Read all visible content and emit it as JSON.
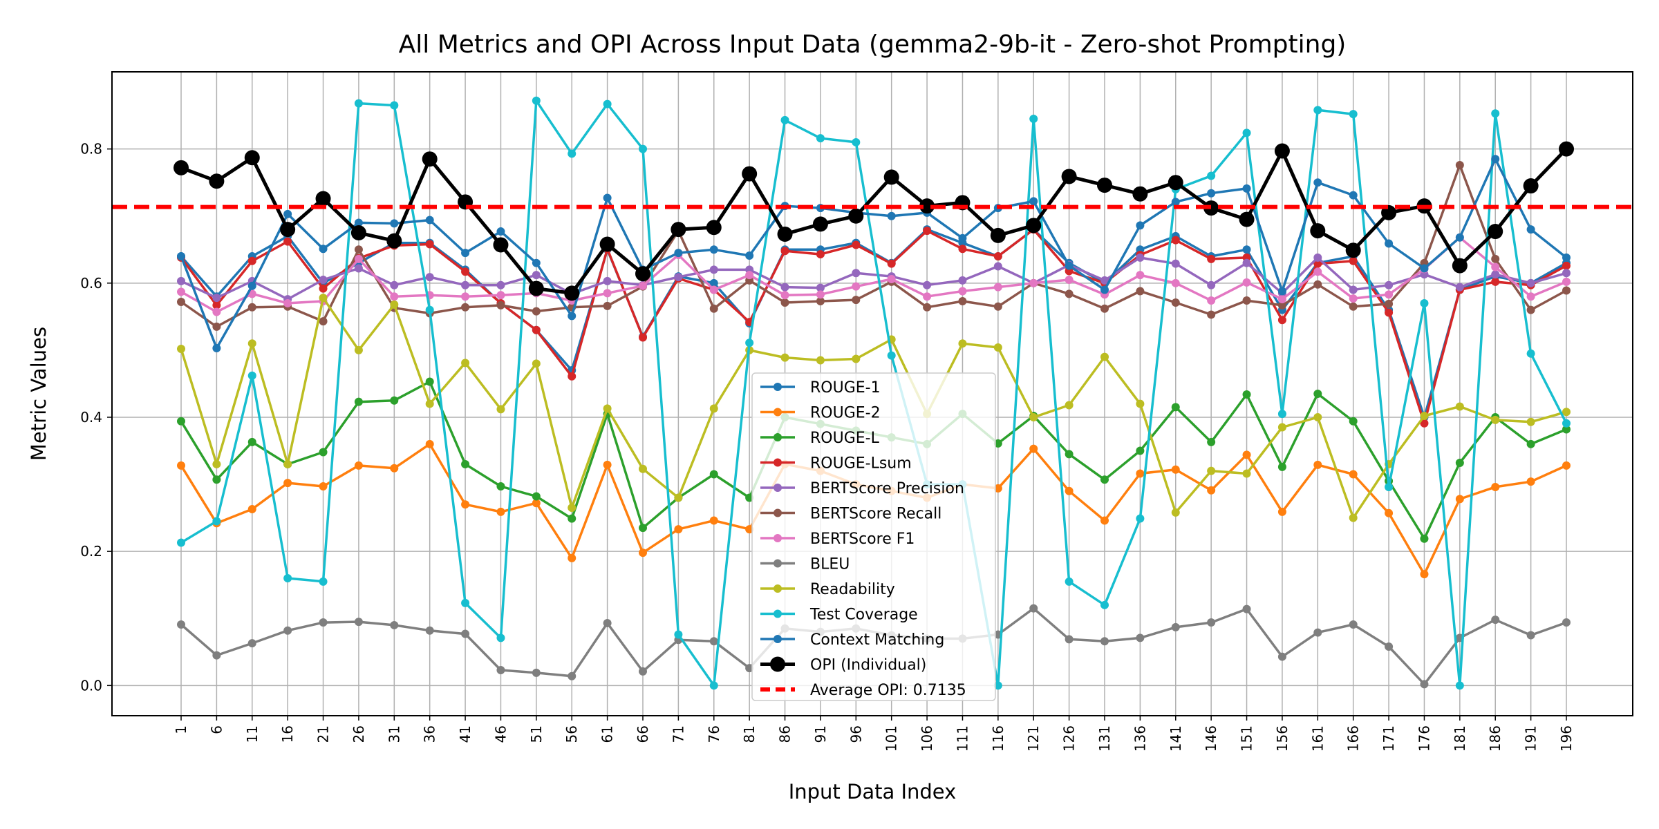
{
  "chart_data": {
    "type": "line",
    "title": "All Metrics and OPI Across Input Data (gemma2-9b-it - Zero-shot Prompting)",
    "xlabel": "Input Data Index",
    "ylabel": "Metric Values",
    "ylim": [
      -0.045,
      0.915
    ],
    "yticks": [
      0.0,
      0.2,
      0.4,
      0.6,
      0.8
    ],
    "grid": true,
    "legend_position": "center-bottom",
    "x": [
      1,
      6,
      11,
      16,
      21,
      26,
      31,
      36,
      41,
      46,
      51,
      56,
      61,
      66,
      71,
      76,
      81,
      86,
      91,
      96,
      101,
      106,
      111,
      116,
      121,
      126,
      131,
      136,
      141,
      146,
      151,
      156,
      161,
      166,
      171,
      176,
      181,
      186,
      191,
      196
    ],
    "series": [
      {
        "name": "ROUGE-1",
        "color": "#1f77b4",
        "values": [
          0.64,
          0.58,
          0.64,
          0.67,
          0.6,
          0.63,
          0.66,
          0.66,
          0.62,
          0.57,
          0.53,
          0.47,
          0.65,
          0.52,
          0.61,
          0.6,
          0.54,
          0.65,
          0.65,
          0.66,
          0.63,
          0.68,
          0.66,
          0.64,
          0.68,
          0.63,
          0.6,
          0.65,
          0.67,
          0.64,
          0.65,
          0.56,
          0.63,
          0.64,
          0.56,
          0.4,
          0.59,
          0.61,
          0.6,
          0.63
        ]
      },
      {
        "name": "ROUGE-2",
        "color": "#ff7f0e",
        "values": [
          0.328,
          0.242,
          0.263,
          0.302,
          0.297,
          0.328,
          0.324,
          0.36,
          0.27,
          0.259,
          0.272,
          0.19,
          0.329,
          0.198,
          0.233,
          0.246,
          0.233,
          0.33,
          0.32,
          0.3,
          0.29,
          0.28,
          0.3,
          0.294,
          0.353,
          0.29,
          0.246,
          0.316,
          0.322,
          0.291,
          0.344,
          0.259,
          0.329,
          0.315,
          0.257,
          0.166,
          0.278,
          0.296,
          0.304,
          0.328
        ]
      },
      {
        "name": "ROUGE-L",
        "color": "#2ca02c",
        "values": [
          0.394,
          0.307,
          0.363,
          0.33,
          0.348,
          0.423,
          0.425,
          0.453,
          0.33,
          0.297,
          0.282,
          0.249,
          0.405,
          0.235,
          0.28,
          0.315,
          0.28,
          0.4,
          0.39,
          0.38,
          0.37,
          0.36,
          0.405,
          0.361,
          0.402,
          0.345,
          0.307,
          0.35,
          0.415,
          0.363,
          0.434,
          0.326,
          0.435,
          0.394,
          0.305,
          0.219,
          0.332,
          0.4,
          0.36,
          0.382
        ]
      },
      {
        "name": "ROUGE-Lsum",
        "color": "#d62728",
        "values": [
          0.638,
          0.567,
          0.633,
          0.662,
          0.592,
          0.637,
          0.656,
          0.658,
          0.617,
          0.57,
          0.53,
          0.461,
          0.651,
          0.519,
          0.607,
          0.59,
          0.542,
          0.648,
          0.643,
          0.657,
          0.629,
          0.678,
          0.651,
          0.64,
          0.68,
          0.618,
          0.6,
          0.642,
          0.664,
          0.636,
          0.638,
          0.545,
          0.629,
          0.633,
          0.556,
          0.391,
          0.59,
          0.602,
          0.597,
          0.626
        ]
      },
      {
        "name": "BERTScore Precision",
        "color": "#9467bd",
        "values": [
          0.603,
          0.578,
          0.603,
          0.576,
          0.605,
          0.622,
          0.597,
          0.609,
          0.597,
          0.597,
          0.612,
          0.584,
          0.603,
          0.597,
          0.609,
          0.62,
          0.62,
          0.594,
          0.593,
          0.615,
          0.61,
          0.597,
          0.604,
          0.625,
          0.6,
          0.627,
          0.604,
          0.638,
          0.629,
          0.597,
          0.63,
          0.585,
          0.638,
          0.59,
          0.597,
          0.613,
          0.594,
          0.613,
          0.6,
          0.615
        ]
      },
      {
        "name": "BERTScore Recall",
        "color": "#8c564b",
        "values": [
          0.572,
          0.535,
          0.564,
          0.565,
          0.543,
          0.65,
          0.563,
          0.555,
          0.564,
          0.567,
          0.558,
          0.564,
          0.566,
          0.595,
          0.678,
          0.562,
          0.604,
          0.571,
          0.573,
          0.575,
          0.602,
          0.564,
          0.573,
          0.565,
          0.6,
          0.584,
          0.562,
          0.588,
          0.571,
          0.553,
          0.574,
          0.567,
          0.598,
          0.565,
          0.569,
          0.63,
          0.776,
          0.636,
          0.56,
          0.589
        ]
      },
      {
        "name": "BERTScore F1",
        "color": "#e377c2",
        "values": [
          0.587,
          0.557,
          0.584,
          0.57,
          0.573,
          0.636,
          0.58,
          0.582,
          0.58,
          0.582,
          0.585,
          0.574,
          0.585,
          0.596,
          0.642,
          0.59,
          0.612,
          0.582,
          0.583,
          0.595,
          0.606,
          0.58,
          0.588,
          0.594,
          0.6,
          0.605,
          0.583,
          0.612,
          0.6,
          0.574,
          0.601,
          0.576,
          0.617,
          0.577,
          0.583,
          0.621,
          0.668,
          0.624,
          0.58,
          0.602
        ]
      },
      {
        "name": "BLEU",
        "color": "#7f7f7f",
        "values": [
          0.091,
          0.045,
          0.063,
          0.082,
          0.094,
          0.095,
          0.09,
          0.082,
          0.077,
          0.023,
          0.019,
          0.014,
          0.093,
          0.021,
          0.068,
          0.066,
          0.026,
          0.085,
          0.08,
          0.085,
          0.075,
          0.07,
          0.07,
          0.076,
          0.115,
          0.069,
          0.066,
          0.071,
          0.087,
          0.094,
          0.114,
          0.043,
          0.079,
          0.091,
          0.058,
          0.002,
          0.071,
          0.098,
          0.075,
          0.094
        ]
      },
      {
        "name": "Readability",
        "color": "#bcbd22",
        "values": [
          0.502,
          0.33,
          0.51,
          0.33,
          0.578,
          0.5,
          0.568,
          0.42,
          0.481,
          0.412,
          0.48,
          0.265,
          0.413,
          0.323,
          0.28,
          0.413,
          0.5,
          0.489,
          0.485,
          0.487,
          0.516,
          0.405,
          0.51,
          0.504,
          0.4,
          0.418,
          0.49,
          0.42,
          0.258,
          0.32,
          0.316,
          0.385,
          0.4,
          0.25,
          0.33,
          0.402,
          0.416,
          0.396,
          0.393,
          0.408
        ]
      },
      {
        "name": "Test Coverage",
        "color": "#17becf",
        "values": [
          0.213,
          0.245,
          0.462,
          0.16,
          0.155,
          0.868,
          0.865,
          0.56,
          0.123,
          0.071,
          0.872,
          0.793,
          0.867,
          0.8,
          0.076,
          0.0,
          0.511,
          0.843,
          0.816,
          0.81,
          0.492,
          0.3,
          0.3,
          0.0,
          0.845,
          0.155,
          0.12,
          0.249,
          0.74,
          0.76,
          0.824,
          0.405,
          0.858,
          0.852,
          0.296,
          0.57,
          0.0,
          0.853,
          0.495,
          0.391
        ]
      },
      {
        "name": "Context Matching",
        "color": "#1f77b4",
        "values": [
          0.64,
          0.503,
          0.596,
          0.703,
          0.651,
          0.69,
          0.689,
          0.694,
          0.645,
          0.677,
          0.63,
          0.551,
          0.727,
          0.62,
          0.645,
          0.65,
          0.641,
          0.715,
          0.712,
          0.705,
          0.7,
          0.705,
          0.667,
          0.712,
          0.722,
          0.626,
          0.59,
          0.686,
          0.721,
          0.734,
          0.741,
          0.588,
          0.75,
          0.731,
          0.659,
          0.622,
          0.668,
          0.785,
          0.68,
          0.638
        ]
      },
      {
        "name": "OPI (Individual)",
        "color": "#000000",
        "values": [
          0.772,
          0.752,
          0.787,
          0.68,
          0.726,
          0.675,
          0.663,
          0.785,
          0.721,
          0.657,
          0.592,
          0.585,
          0.658,
          0.614,
          0.68,
          0.683,
          0.763,
          0.673,
          0.688,
          0.7,
          0.758,
          0.715,
          0.72,
          0.671,
          0.686,
          0.759,
          0.746,
          0.733,
          0.75,
          0.712,
          0.695,
          0.797,
          0.678,
          0.649,
          0.705,
          0.715,
          0.626,
          0.677,
          0.745,
          0.8
        ]
      }
    ],
    "average_opi": {
      "name": "Average OPI: 0.7135",
      "value": 0.7135,
      "color": "#ff0000"
    }
  }
}
